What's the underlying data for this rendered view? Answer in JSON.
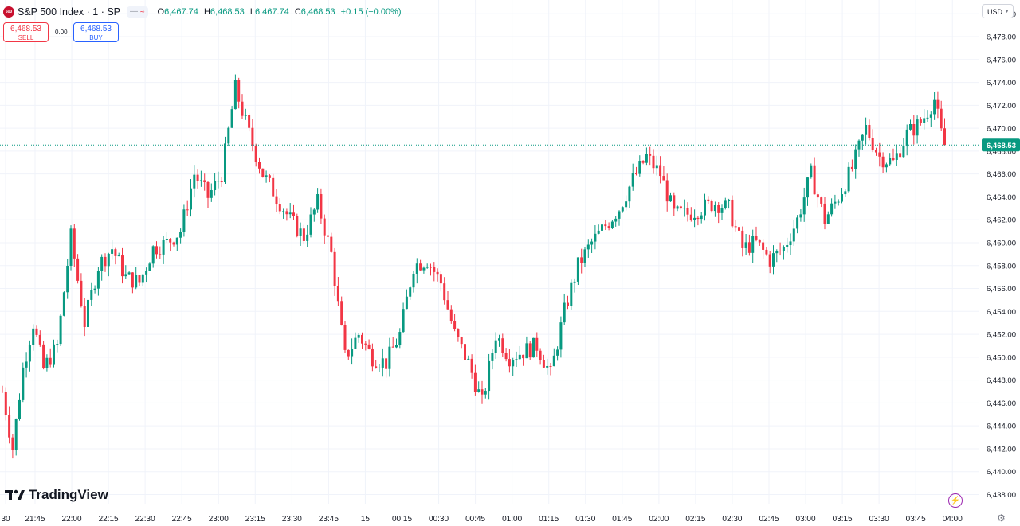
{
  "header": {
    "logo_text": "500",
    "symbol_title": "S&P 500 Index · 1 · SP",
    "ohlc": {
      "o_key": "O",
      "o": "6,467.74",
      "h_key": "H",
      "h": "6,468.53",
      "l_key": "L",
      "l": "6,467.74",
      "c_key": "C",
      "c": "6,468.53",
      "change": "+0.15 (+0.00%)"
    },
    "currency": "USD"
  },
  "trade": {
    "sell_price": "6,468.53",
    "sell_label": "SELL",
    "spread": "0.00",
    "buy_price": "6,468.53",
    "buy_label": "BUY"
  },
  "brand": {
    "name": "TradingView"
  },
  "colors": {
    "up": "#089981",
    "down": "#f23645",
    "grid": "#f0f3fa",
    "last_price_line": "#089981",
    "axis_text": "#131722"
  },
  "icons": [
    "tradingview-logo-icon",
    "lightning-icon",
    "settings-icon",
    "chevron-down-icon"
  ],
  "chart_data": {
    "type": "candlestick",
    "symbol": "S&P 500 Index",
    "interval": "1",
    "last_price": 6468.53,
    "last_price_label": "6,468.53",
    "y_ticks": [
      6438,
      6440,
      6442,
      6444,
      6446,
      6448,
      6450,
      6452,
      6454,
      6456,
      6458,
      6460,
      6462,
      6464,
      6466,
      6468,
      6470,
      6472,
      6474,
      6476,
      6478,
      6480
    ],
    "y_tick_labels": [
      "6,438.00",
      "6,440.00",
      "6,442.00",
      "6,444.00",
      "6,446.00",
      "6,448.00",
      "6,450.00",
      "6,452.00",
      "6,454.00",
      "6,456.00",
      "6,458.00",
      "6,460.00",
      "6,462.00",
      "6,464.00",
      "6,466.00",
      "6,468.00",
      "6,470.00",
      "6,472.00",
      "6,474.00",
      "6,476.00",
      "6,478.00",
      "6,480.00"
    ],
    "x_labels": [
      "30",
      "21:45",
      "22:00",
      "22:15",
      "22:30",
      "22:45",
      "23:00",
      "23:15",
      "23:30",
      "23:45",
      "15",
      "00:15",
      "00:30",
      "00:45",
      "01:00",
      "01:15",
      "01:30",
      "01:45",
      "02:00",
      "02:15",
      "02:30",
      "02:45",
      "03:00",
      "03:15",
      "03:30",
      "03:45",
      "04:00"
    ],
    "ylim": [
      6437.2,
      6481.2
    ],
    "price_path": [
      [
        0,
        6447.0
      ],
      [
        3,
        6442.0
      ],
      [
        6,
        6449.0
      ],
      [
        9,
        6453.0
      ],
      [
        12,
        6449.0
      ],
      [
        16,
        6451.0
      ],
      [
        20,
        6460.5
      ],
      [
        24,
        6453.0
      ],
      [
        28,
        6458.0
      ],
      [
        32,
        6459.5
      ],
      [
        36,
        6457.0
      ],
      [
        40,
        6456.5
      ],
      [
        44,
        6459.5
      ],
      [
        48,
        6460.0
      ],
      [
        52,
        6461.0
      ],
      [
        56,
        6466.0
      ],
      [
        60,
        6464.0
      ],
      [
        64,
        6466.0
      ],
      [
        68,
        6473.5
      ],
      [
        72,
        6469.5
      ],
      [
        76,
        6466.0
      ],
      [
        80,
        6464.0
      ],
      [
        84,
        6462.0
      ],
      [
        88,
        6460.5
      ],
      [
        92,
        6463.5
      ],
      [
        96,
        6459.0
      ],
      [
        100,
        6450.0
      ],
      [
        104,
        6452.0
      ],
      [
        108,
        6450.0
      ],
      [
        112,
        6449.5
      ],
      [
        116,
        6452.0
      ],
      [
        120,
        6458.0
      ],
      [
        124,
        6458.5
      ],
      [
        128,
        6456.5
      ],
      [
        132,
        6452.0
      ],
      [
        136,
        6449.5
      ],
      [
        140,
        6446.0
      ],
      [
        144,
        6452.0
      ],
      [
        148,
        6450.0
      ],
      [
        152,
        6450.5
      ],
      [
        156,
        6451.0
      ],
      [
        160,
        6448.5
      ],
      [
        164,
        6454.0
      ],
      [
        168,
        6458.0
      ],
      [
        172,
        6460.0
      ],
      [
        176,
        6461.5
      ],
      [
        180,
        6463.0
      ],
      [
        184,
        6465.5
      ],
      [
        188,
        6467.5
      ],
      [
        192,
        6466.0
      ],
      [
        196,
        6462.5
      ],
      [
        200,
        6462.5
      ],
      [
        204,
        6463.0
      ],
      [
        208,
        6463.5
      ],
      [
        212,
        6463.0
      ],
      [
        216,
        6459.5
      ],
      [
        220,
        6460.0
      ],
      [
        224,
        6458.5
      ],
      [
        228,
        6459.5
      ],
      [
        232,
        6462.0
      ],
      [
        236,
        6466.0
      ],
      [
        240,
        6462.0
      ],
      [
        244,
        6464.0
      ],
      [
        248,
        6466.5
      ],
      [
        252,
        6470.0
      ],
      [
        256,
        6467.5
      ],
      [
        260,
        6467.0
      ],
      [
        264,
        6469.5
      ],
      [
        268,
        6470.5
      ],
      [
        272,
        6472.5
      ],
      [
        275,
        6468.0
      ]
    ]
  }
}
